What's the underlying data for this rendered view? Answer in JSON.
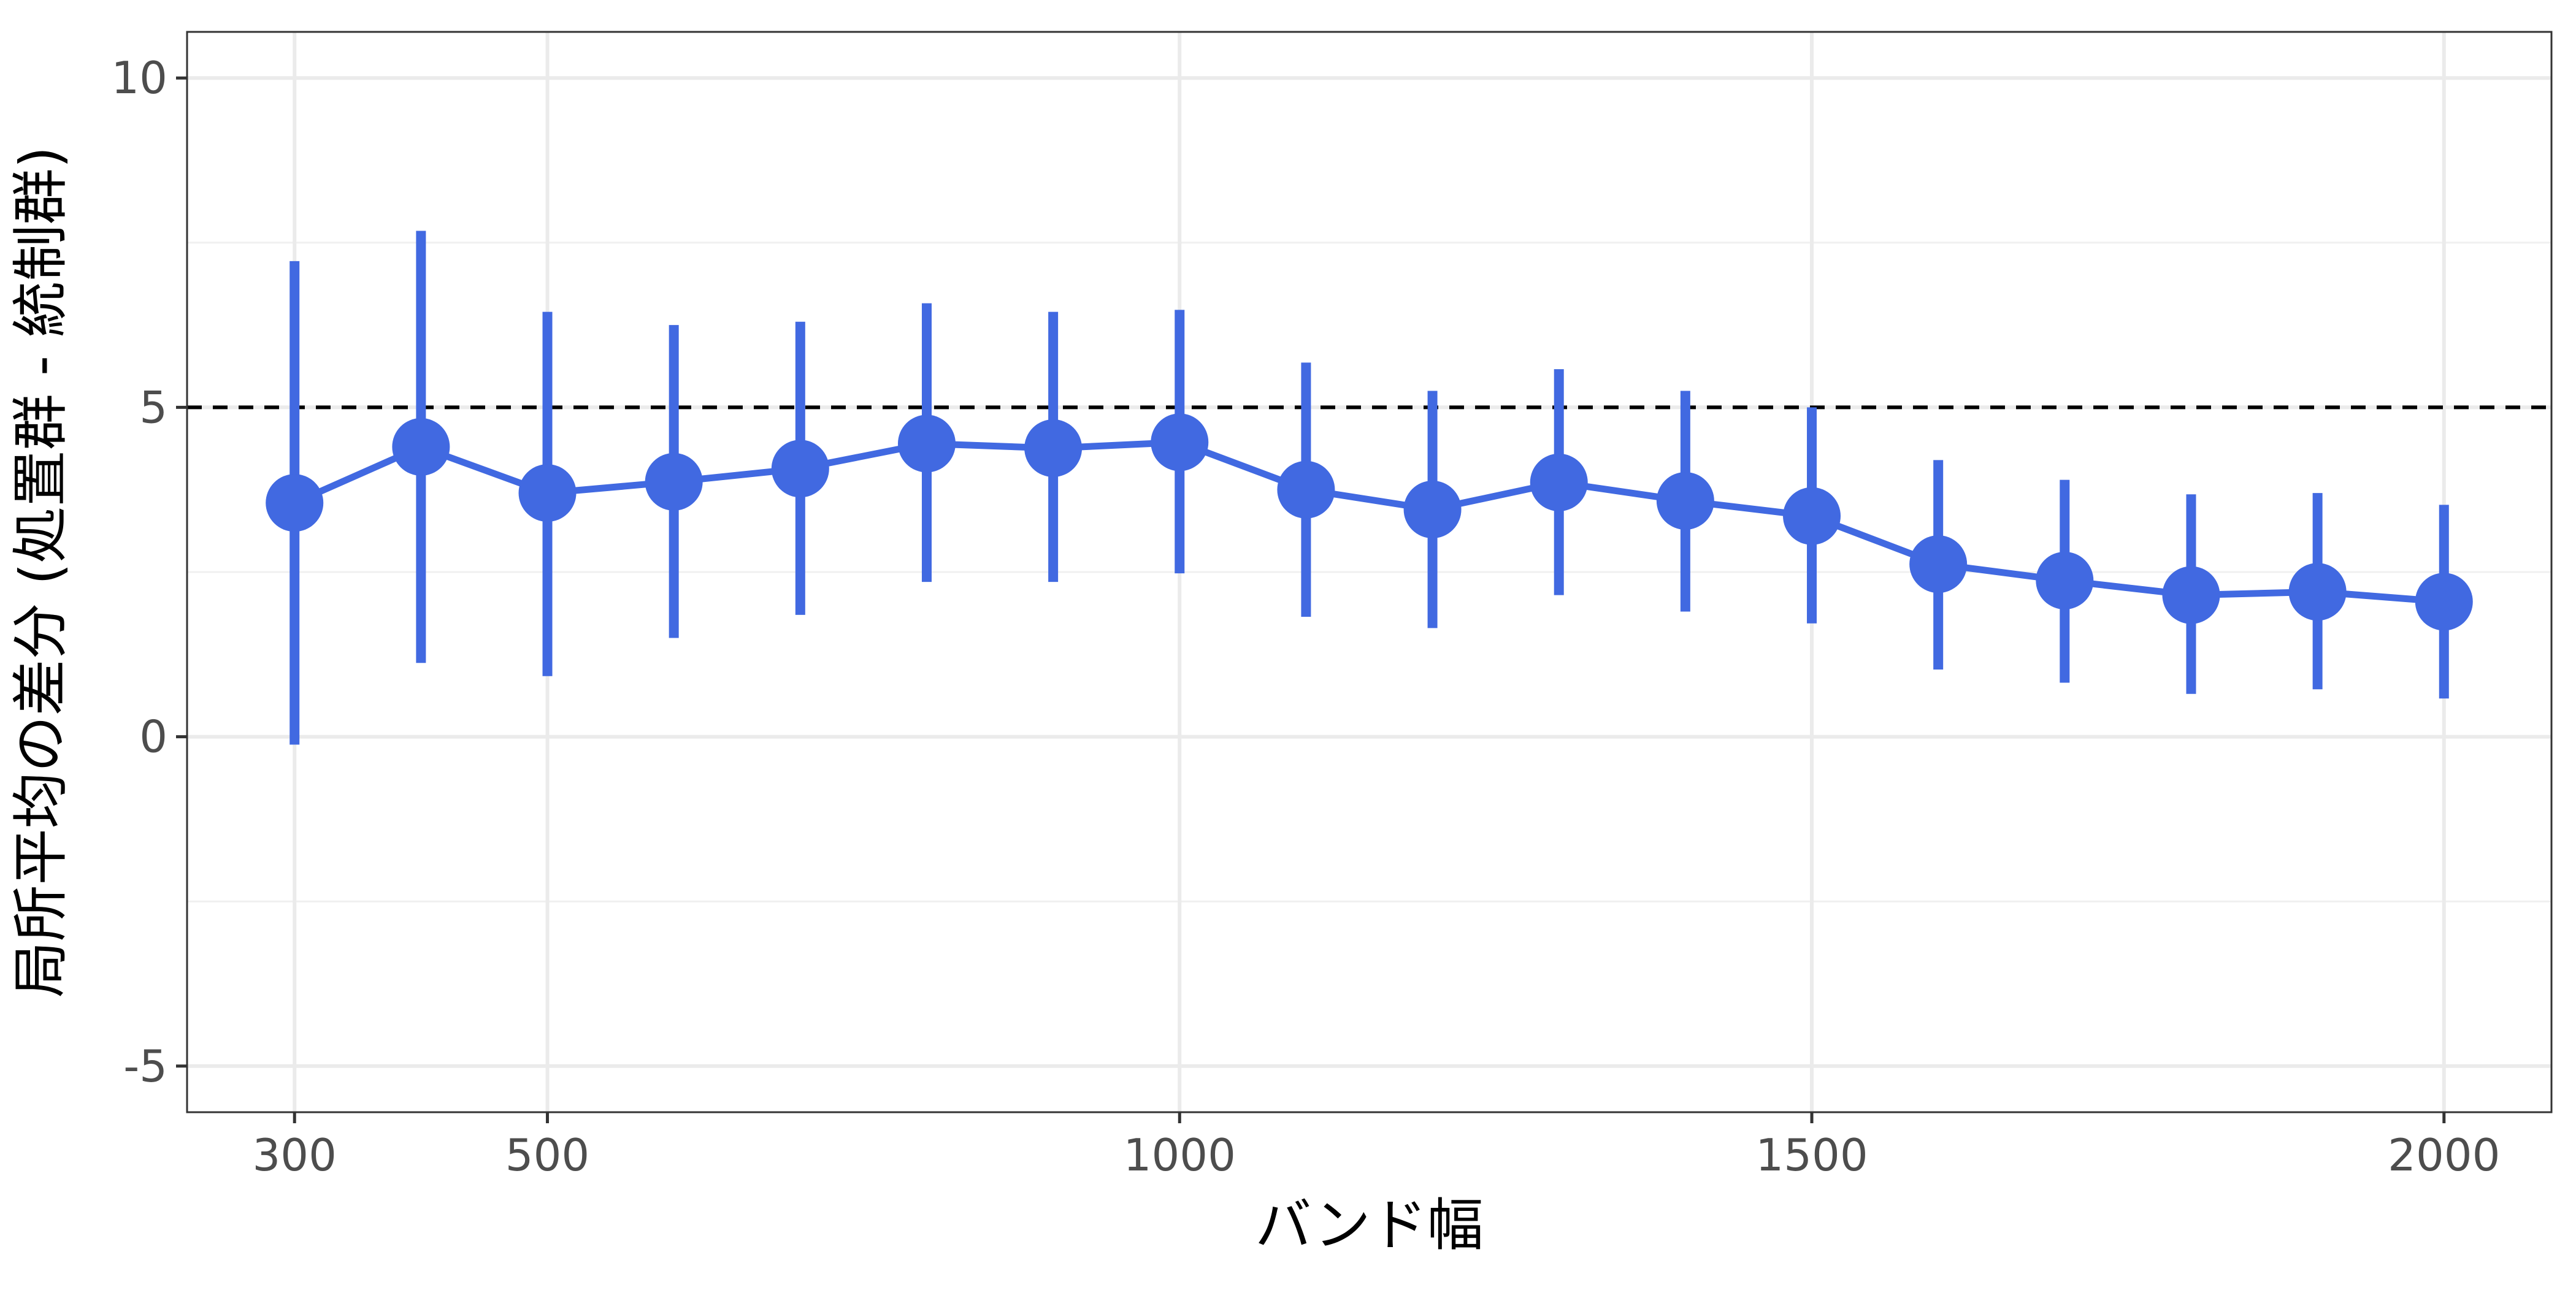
{
  "chart_data": {
    "type": "line",
    "title": "",
    "xlabel": "バンド幅",
    "ylabel": "局所平均の差分 (処置群 - 統制群)",
    "xlim": [
      215,
      2085
    ],
    "ylim": [
      -5.7,
      10.7
    ],
    "x_ticks": [
      300,
      500,
      1000,
      1500,
      2000
    ],
    "x_tick_labels": [
      "300",
      "500",
      "1000",
      "1500",
      "2000"
    ],
    "y_ticks": [
      -5,
      0,
      5,
      10
    ],
    "y_tick_labels": [
      "-5",
      "0",
      "5",
      "10"
    ],
    "y_minor_ticks": [
      -2.5,
      2.5,
      7.5
    ],
    "grid": true,
    "reference_line": {
      "y": 5,
      "style": "dashed",
      "color": "#000000"
    },
    "series": [
      {
        "color": "#4169E1",
        "x": [
          300,
          400,
          500,
          600,
          700,
          800,
          900,
          1000,
          1100,
          1200,
          1300,
          1400,
          1500,
          1600,
          1700,
          1800,
          1900,
          2000
        ],
        "y": [
          3.55,
          4.4,
          3.7,
          3.87,
          4.07,
          4.45,
          4.38,
          4.47,
          3.75,
          3.45,
          3.86,
          3.58,
          3.35,
          2.62,
          2.37,
          2.15,
          2.2,
          2.05
        ],
        "lower": [
          -0.12,
          1.12,
          0.92,
          1.5,
          1.85,
          2.35,
          2.35,
          2.48,
          1.82,
          1.65,
          2.15,
          1.9,
          1.72,
          1.02,
          0.82,
          0.65,
          0.72,
          0.58
        ],
        "upper": [
          7.22,
          7.68,
          6.45,
          6.25,
          6.3,
          6.58,
          6.45,
          6.48,
          5.68,
          5.25,
          5.58,
          5.25,
          5.0,
          4.2,
          3.9,
          3.68,
          3.7,
          3.52
        ]
      }
    ]
  }
}
